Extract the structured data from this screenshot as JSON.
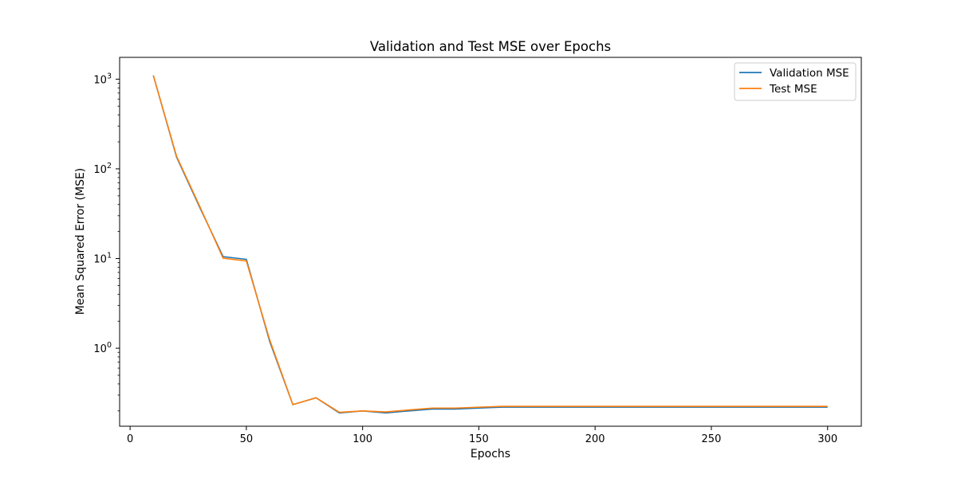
{
  "chart_data": {
    "type": "line",
    "title": "Validation and Test MSE over Epochs",
    "xlabel": "Epochs",
    "ylabel": "Mean Squared Error (MSE)",
    "x": [
      10,
      20,
      30,
      40,
      50,
      60,
      70,
      80,
      90,
      100,
      110,
      120,
      130,
      140,
      150,
      160,
      170,
      180,
      190,
      200,
      210,
      220,
      230,
      240,
      250,
      260,
      270,
      280,
      290,
      300
    ],
    "series": [
      {
        "name": "Validation MSE",
        "color": "#1f77b4",
        "values": [
          1100,
          135,
          37,
          10.5,
          9.8,
          1.2,
          0.235,
          0.28,
          0.19,
          0.2,
          0.19,
          0.2,
          0.21,
          0.21,
          0.215,
          0.22,
          0.22,
          0.22,
          0.22,
          0.22,
          0.22,
          0.22,
          0.22,
          0.22,
          0.22,
          0.22,
          0.22,
          0.22,
          0.22,
          0.22
        ]
      },
      {
        "name": "Test MSE",
        "color": "#ff7f0e",
        "values": [
          1100,
          138,
          38,
          10.1,
          9.4,
          1.25,
          0.235,
          0.28,
          0.193,
          0.2,
          0.195,
          0.205,
          0.215,
          0.215,
          0.22,
          0.225,
          0.225,
          0.225,
          0.225,
          0.225,
          0.225,
          0.225,
          0.225,
          0.225,
          0.225,
          0.225,
          0.225,
          0.225,
          0.225,
          0.225
        ]
      }
    ],
    "xlim": [
      -4.5,
      314.5
    ],
    "ylim": [
      0.135,
      1750
    ],
    "yscale": "log",
    "x_ticks": [
      0,
      50,
      100,
      150,
      200,
      250,
      300
    ],
    "y_ticks": [
      {
        "value": 1,
        "base": "10",
        "exp": "0"
      },
      {
        "value": 10,
        "base": "10",
        "exp": "1"
      },
      {
        "value": 100,
        "base": "10",
        "exp": "2"
      },
      {
        "value": 1000,
        "base": "10",
        "exp": "3"
      }
    ],
    "grid": false,
    "legend_position": "top-right"
  }
}
